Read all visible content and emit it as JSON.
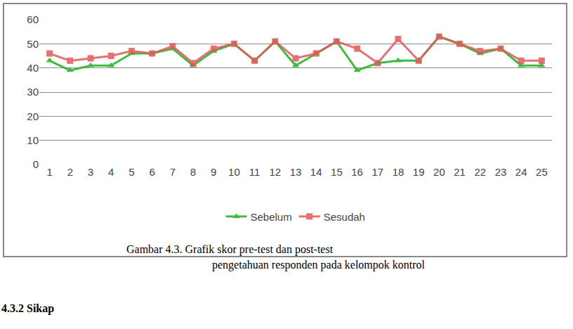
{
  "chart_data": {
    "type": "line",
    "categories": [
      "1",
      "2",
      "3",
      "4",
      "5",
      "6",
      "7",
      "8",
      "9",
      "10",
      "11",
      "12",
      "13",
      "14",
      "15",
      "16",
      "17",
      "18",
      "19",
      "20",
      "21",
      "22",
      "23",
      "24",
      "25"
    ],
    "series": [
      {
        "name": "Sebelum",
        "color": "#22b022",
        "marker": "triangle-up",
        "values": [
          43,
          39,
          41,
          41,
          46,
          46,
          48,
          41,
          47,
          50,
          43,
          51,
          41,
          46,
          51,
          39,
          42,
          43,
          43,
          53,
          50,
          46,
          48,
          41,
          41
        ]
      },
      {
        "name": "Sesudah",
        "color": "#e05a5a",
        "marker": "square",
        "values": [
          46,
          43,
          44,
          45,
          47,
          46,
          49,
          42,
          48,
          50,
          43,
          51,
          44,
          46,
          51,
          48,
          42,
          52,
          43,
          53,
          50,
          47,
          48,
          43,
          43
        ]
      }
    ],
    "ylim": [
      0,
      60
    ],
    "yticks": [
      0,
      10,
      20,
      30,
      40,
      50,
      60
    ],
    "grid": true,
    "legend": "bottom"
  },
  "caption": [
    "Gambar 4.3. Grafik  skor pre-test dan post-test",
    "pengetahuan responden pada kelompok kontrol"
  ],
  "heading": "4.3.2 Sikap"
}
